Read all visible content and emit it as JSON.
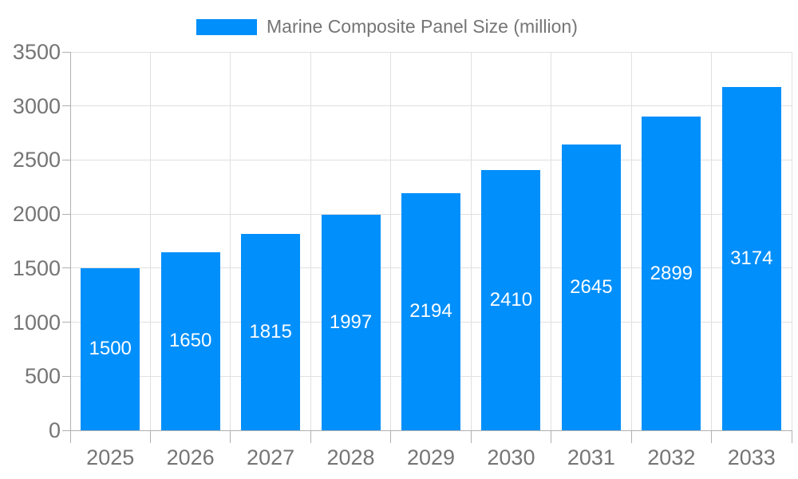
{
  "legend": {
    "label": "Marine Composite Panel Size (million)"
  },
  "chart_data": {
    "type": "bar",
    "title": "Marine Composite Panel Size (million)",
    "series_name": "Marine Composite Panel Size (million)",
    "categories": [
      "2025",
      "2026",
      "2027",
      "2028",
      "2029",
      "2030",
      "2031",
      "2032",
      "2033"
    ],
    "values": [
      1500,
      1650,
      1815,
      1997,
      2194,
      2410,
      2645,
      2899,
      3174
    ],
    "xlabel": "",
    "ylabel": "",
    "ylim": [
      0,
      3500
    ],
    "yticks": [
      0,
      500,
      1000,
      1500,
      2000,
      2500,
      3000,
      3500
    ],
    "grid": true,
    "legend_position": "top-center",
    "value_labels_position": "inside-center",
    "colors": {
      "bar": "#008ffb",
      "bar_value_text": "#ffffff",
      "axis_text": "#757575",
      "gridline": "#e0e0e0",
      "axis_line": "#b0b0b0"
    }
  }
}
